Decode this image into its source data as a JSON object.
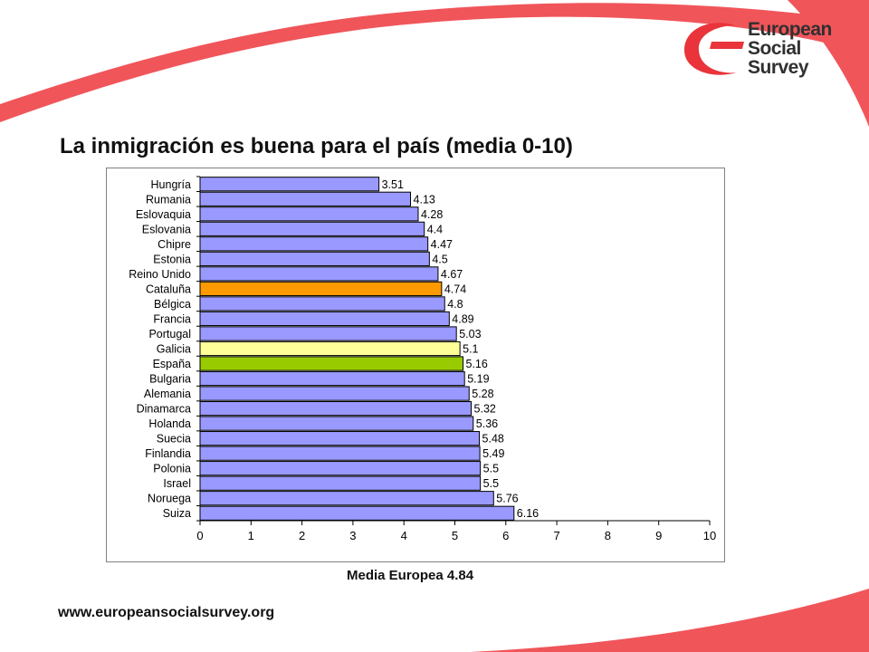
{
  "title": "La inmigración es buena para el país (media 0-10)",
  "caption": "Media Europea 4.84",
  "url": "www.europeansocialsurvey.org",
  "logo": {
    "lines": [
      "European",
      "Social",
      "Survey"
    ],
    "color": "#e8343a"
  },
  "colors": {
    "accent_red": "#f0555a",
    "default_bar": "#9999ff",
    "cataluna_bar": "#ff9900",
    "galicia_bar": "#ffff99",
    "espana_bar": "#99cc00"
  },
  "chart_data": {
    "type": "bar",
    "orientation": "horizontal",
    "title": "",
    "xlabel": "",
    "ylabel": "",
    "xlim": [
      0,
      10
    ],
    "xticks": [
      0,
      1,
      2,
      3,
      4,
      5,
      6,
      7,
      8,
      9,
      10
    ],
    "grid": false,
    "categories": [
      "Hungría",
      "Rumania",
      "Eslovaquia",
      "Eslovania",
      "Chipre",
      "Estonia",
      "Reino Unido",
      "Cataluña",
      "Bélgica",
      "Francia",
      "Portugal",
      "Galicia",
      "España",
      "Bulgaria",
      "Alemania",
      "Dinamarca",
      "Holanda",
      "Suecia",
      "Finlandia",
      "Polonia",
      "Israel",
      "Noruega",
      "Suiza"
    ],
    "values": [
      3.51,
      4.13,
      4.28,
      4.4,
      4.47,
      4.5,
      4.67,
      4.74,
      4.8,
      4.89,
      5.03,
      5.1,
      5.16,
      5.19,
      5.28,
      5.32,
      5.36,
      5.48,
      5.49,
      5.5,
      5.5,
      5.76,
      6.16
    ],
    "data_labels": [
      "3.51",
      "4.13",
      "4.28",
      "4.4",
      "4.47",
      "4.5",
      "4.67",
      "4.74",
      "4.8",
      "4.89",
      "5.03",
      "5.1",
      "5.16",
      "5.19",
      "5.28",
      "5.32",
      "5.36",
      "5.48",
      "5.49",
      "5.5",
      "5.5",
      "5.76",
      "6.16"
    ],
    "highlight": {
      "Cataluña": "#ff9900",
      "Galicia": "#ffff99",
      "España": "#99cc00"
    },
    "bar_color": "#9999ff"
  }
}
